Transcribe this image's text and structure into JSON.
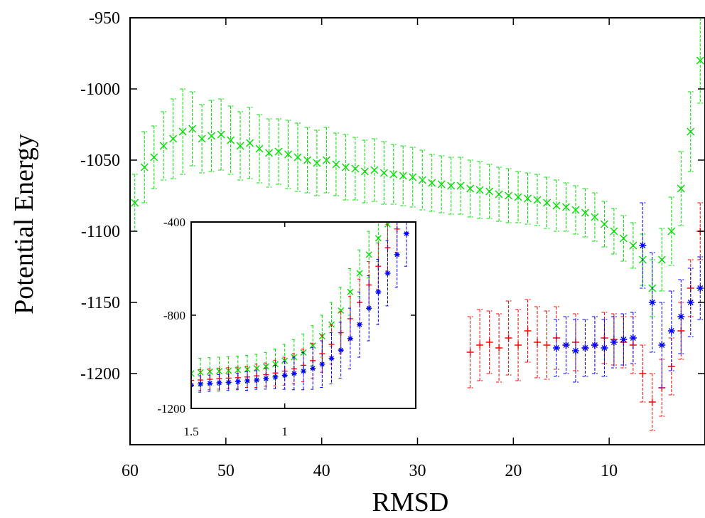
{
  "chart_data": [
    {
      "type": "scatter",
      "title": "",
      "xlabel": "RMSD",
      "ylabel": "Potential Energy",
      "xlim": [
        60,
        0
      ],
      "ylim": [
        -1250,
        -950
      ],
      "x_ticks": [
        60,
        50,
        40,
        30,
        20,
        10
      ],
      "y_ticks": [
        -950,
        -1000,
        -1050,
        -1100,
        -1150,
        -1200
      ],
      "legend": "none",
      "error_bars": true,
      "series": [
        {
          "color": "#00e000",
          "marker": "x",
          "x": [
            59.5,
            58.5,
            57.5,
            56.5,
            55.5,
            54.5,
            53.5,
            52.5,
            51.5,
            50.5,
            49.5,
            48.5,
            47.5,
            46.5,
            45.5,
            44.5,
            43.5,
            42.5,
            41.5,
            40.5,
            39.5,
            38.5,
            37.5,
            36.5,
            35.5,
            34.5,
            33.5,
            32.5,
            31.5,
            30.5,
            29.5,
            28.5,
            27.5,
            26.5,
            25.5,
            24.5,
            23.5,
            22.5,
            21.5,
            20.5,
            19.5,
            18.5,
            17.5,
            16.5,
            15.5,
            14.5,
            13.5,
            12.5,
            11.5,
            10.5,
            9.5,
            8.5,
            7.5,
            6.5,
            5.5,
            4.5,
            3.5,
            2.5,
            1.5,
            0.5
          ],
          "y": [
            -1080,
            -1055,
            -1048,
            -1040,
            -1035,
            -1030,
            -1028,
            -1035,
            -1033,
            -1032,
            -1036,
            -1040,
            -1038,
            -1042,
            -1045,
            -1044,
            -1046,
            -1048,
            -1050,
            -1052,
            -1050,
            -1053,
            -1055,
            -1056,
            -1058,
            -1057,
            -1059,
            -1060,
            -1061,
            -1062,
            -1064,
            -1066,
            -1067,
            -1068,
            -1068,
            -1070,
            -1071,
            -1072,
            -1074,
            -1075,
            -1076,
            -1077,
            -1078,
            -1080,
            -1082,
            -1083,
            -1085,
            -1087,
            -1090,
            -1095,
            -1100,
            -1105,
            -1110,
            -1120,
            -1140,
            -1120,
            -1100,
            -1070,
            -1030,
            -980
          ],
          "err": [
            20,
            25,
            22,
            24,
            28,
            30,
            26,
            24,
            25,
            25,
            24,
            24,
            25,
            24,
            24,
            23,
            24,
            24,
            23,
            23,
            23,
            22,
            23,
            22,
            22,
            22,
            22,
            21,
            21,
            21,
            21,
            20,
            20,
            20,
            20,
            20,
            20,
            19,
            19,
            19,
            18,
            18,
            18,
            18,
            18,
            17,
            17,
            17,
            17,
            16,
            16,
            16,
            16,
            18,
            20,
            22,
            24,
            26,
            28,
            30
          ]
        },
        {
          "color": "#ff0000",
          "marker": "+",
          "x": [
            24.5,
            23.5,
            22.5,
            21.5,
            20.5,
            19.5,
            18.5,
            17.5,
            16.5,
            15.5,
            14.5,
            13.5,
            12.5,
            11.5,
            10.5,
            9.5,
            8.5,
            7.5,
            6.5,
            5.5,
            4.5,
            3.5,
            2.5,
            1.5,
            0.5
          ],
          "y": [
            -1185,
            -1180,
            -1178,
            -1182,
            -1175,
            -1180,
            -1170,
            -1178,
            -1180,
            -1175,
            -1180,
            -1178,
            -1182,
            -1180,
            -1175,
            -1176,
            -1178,
            -1180,
            -1200,
            -1220,
            -1210,
            -1195,
            -1170,
            -1140,
            -1100
          ],
          "err": [
            25,
            25,
            22,
            24,
            26,
            25,
            22,
            25,
            24,
            22,
            20,
            20,
            20,
            20,
            18,
            18,
            18,
            20,
            20,
            20,
            20,
            20,
            20,
            20,
            20
          ]
        },
        {
          "color": "#0000ff",
          "marker": "*",
          "x": [
            15.5,
            14.5,
            13.5,
            12.5,
            11.5,
            10.5,
            9.5,
            8.5,
            7.5,
            6.5,
            5.5,
            4.5,
            3.5,
            2.5,
            1.5,
            0.5
          ],
          "y": [
            -1182,
            -1180,
            -1184,
            -1182,
            -1180,
            -1182,
            -1178,
            -1176,
            -1175,
            -1110,
            -1150,
            -1180,
            -1170,
            -1160,
            -1150,
            -1140
          ],
          "err": [
            20,
            20,
            22,
            20,
            20,
            20,
            18,
            18,
            18,
            30,
            35,
            30,
            28,
            26,
            24,
            22
          ]
        }
      ]
    },
    {
      "type": "scatter",
      "title": "",
      "xlabel": "",
      "ylabel": "",
      "xlim": [
        1.5,
        0.3
      ],
      "ylim": [
        -1200,
        -400
      ],
      "x_ticks": [
        1.5,
        1
      ],
      "y_ticks": [
        -400,
        -800,
        -1200
      ],
      "legend": "none",
      "error_bars": true,
      "series": [
        {
          "color": "#00e000",
          "marker": "x",
          "x": [
            1.5,
            1.45,
            1.4,
            1.35,
            1.3,
            1.25,
            1.2,
            1.15,
            1.1,
            1.05,
            1.0,
            0.95,
            0.9,
            0.85,
            0.8,
            0.75,
            0.7,
            0.65,
            0.6,
            0.55,
            0.5,
            0.45
          ],
          "y": [
            -1050,
            -1045,
            -1042,
            -1040,
            -1038,
            -1035,
            -1032,
            -1028,
            -1020,
            -1010,
            -995,
            -980,
            -960,
            -930,
            -890,
            -840,
            -780,
            -700,
            -620,
            -540,
            -470,
            -410
          ],
          "err": [
            60,
            60,
            60,
            60,
            60,
            60,
            60,
            60,
            60,
            65,
            70,
            75,
            80,
            85,
            90,
            95,
            100,
            100,
            100,
            100,
            100,
            100
          ]
        },
        {
          "color": "#ff0000",
          "marker": "+",
          "x": [
            1.5,
            1.45,
            1.4,
            1.35,
            1.3,
            1.25,
            1.2,
            1.15,
            1.1,
            1.05,
            1.0,
            0.95,
            0.9,
            0.85,
            0.8,
            0.75,
            0.7,
            0.65,
            0.6,
            0.55,
            0.5,
            0.45,
            0.4
          ],
          "y": [
            -1080,
            -1078,
            -1075,
            -1072,
            -1070,
            -1068,
            -1065,
            -1060,
            -1055,
            -1048,
            -1040,
            -1030,
            -1015,
            -995,
            -965,
            -925,
            -875,
            -815,
            -745,
            -670,
            -590,
            -510,
            -430
          ],
          "err": [
            45,
            45,
            45,
            45,
            45,
            45,
            45,
            50,
            50,
            55,
            60,
            65,
            70,
            75,
            80,
            85,
            90,
            95,
            100,
            100,
            100,
            100,
            100
          ]
        },
        {
          "color": "#0000ff",
          "marker": "*",
          "x": [
            1.5,
            1.45,
            1.4,
            1.35,
            1.3,
            1.25,
            1.2,
            1.15,
            1.1,
            1.05,
            1.0,
            0.95,
            0.9,
            0.85,
            0.8,
            0.75,
            0.7,
            0.65,
            0.6,
            0.55,
            0.5,
            0.45,
            0.4,
            0.35
          ],
          "y": [
            -1100,
            -1095,
            -1092,
            -1090,
            -1088,
            -1085,
            -1082,
            -1078,
            -1072,
            -1065,
            -1058,
            -1050,
            -1040,
            -1028,
            -1010,
            -985,
            -950,
            -900,
            -840,
            -770,
            -700,
            -620,
            -540,
            -450
          ],
          "err": [
            35,
            35,
            35,
            35,
            35,
            35,
            40,
            40,
            45,
            50,
            60,
            70,
            80,
            90,
            100,
            110,
            120,
            130,
            140,
            140,
            140,
            140,
            140,
            140
          ]
        }
      ]
    }
  ]
}
